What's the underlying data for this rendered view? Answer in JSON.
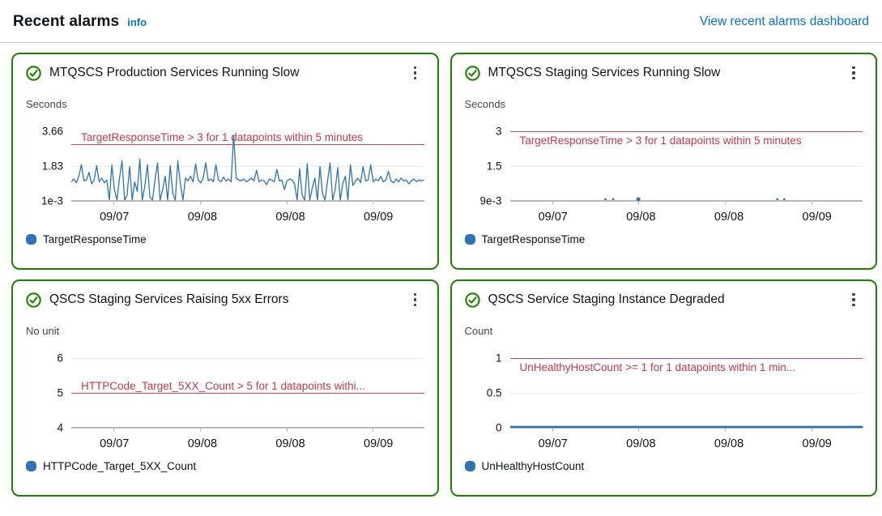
{
  "header": {
    "title": "Recent alarms",
    "info_label": "info",
    "dashboard_link": "View recent alarms dashboard"
  },
  "colors": {
    "ok_border_green": "#1f8104",
    "series_blue": "#2e73b3",
    "threshold_red": "#c8394a",
    "link_blue": "#0972d3",
    "axis_gray": "#b8bcc2"
  },
  "cards": [
    {
      "title": "MTQSCS Production Services Running Slow",
      "status": "OK",
      "chart": {
        "type": "line",
        "unit": "Seconds",
        "yticks": [
          "3.66",
          "1.83",
          "1e-3"
        ],
        "ymin": 0,
        "ymax": 3.66,
        "threshold": {
          "value": 3,
          "label": "TargetResponseTime > 3 for 1 datapoints within 5 minutes",
          "label_side": "above"
        },
        "xlabels": [
          "09/07",
          "09/08",
          "09/08",
          "09/09"
        ],
        "legend": "TargetResponseTime",
        "series": [
          1.0,
          1.15,
          0.95,
          1.3,
          1.9,
          1.05,
          1.1,
          1.5,
          0.9,
          1.1,
          1.85,
          1.0,
          1.2,
          0.95,
          1.1,
          0.001,
          1.9,
          0.6,
          0.001,
          1.2,
          2.1,
          0.001,
          0.3,
          1.8,
          0.001,
          1.0,
          0.5,
          2.2,
          0.001,
          0.8,
          1.9,
          0.2,
          0.001,
          1.1,
          2.0,
          0.001,
          0.6,
          1.3,
          0.001,
          1.85,
          0.4,
          0.001,
          2.1,
          0.9,
          0.001,
          1.2,
          1.05,
          1.3,
          1.0,
          1.95,
          1.1,
          0.95,
          1.2,
          2.0,
          1.05,
          1.15,
          1.0,
          1.9,
          1.1,
          1.0,
          1.25,
          1.05,
          1.15,
          1.0,
          3.45,
          1.2,
          1.1,
          1.05,
          1.15,
          1.0,
          1.1,
          1.2,
          1.05,
          1.6,
          1.0,
          1.1,
          1.05,
          0.85,
          1.15,
          1.1,
          1.0,
          1.65,
          1.05,
          1.1,
          0.6,
          1.05,
          1.15,
          1.1,
          0.9,
          0.001,
          1.7,
          0.3,
          0.001,
          1.95,
          0.001,
          0.7,
          1.2,
          0.001,
          1.8,
          0.4,
          0.001,
          1.05,
          2.0,
          0.001,
          0.6,
          1.75,
          0.001,
          0.9,
          1.3,
          0.001,
          1.9,
          0.8,
          1.05,
          1.2,
          0.95,
          1.8,
          1.05,
          1.1,
          1.9,
          1.0,
          1.15,
          1.05,
          1.3,
          1.0,
          1.1,
          1.55,
          1.05,
          0.95,
          1.15,
          1.0,
          1.2,
          1.05,
          1.1,
          0.9,
          1.05,
          1.15,
          1.0,
          1.1,
          1.05,
          1.1
        ],
        "dots": []
      }
    },
    {
      "title": "MTQSCS Staging Services Running Slow",
      "status": "OK",
      "chart": {
        "type": "line",
        "unit": "Seconds",
        "yticks": [
          "3",
          "1.5",
          "9e-3"
        ],
        "ymin": 0,
        "ymax": 3,
        "threshold": {
          "value": 3,
          "label": "TargetResponseTime > 3 for 1 datapoints within 5 minutes",
          "label_side": "below"
        },
        "xlabels": [
          "09/07",
          "09/08",
          "09/08",
          "09/09"
        ],
        "legend": "TargetResponseTime",
        "series": [],
        "dots": [
          {
            "x": 0.27,
            "r": 1.4
          },
          {
            "x": 0.292,
            "r": 1.4
          },
          {
            "x": 0.363,
            "r": 2.5
          },
          {
            "x": 0.757,
            "r": 1.4
          },
          {
            "x": 0.777,
            "r": 1.4
          }
        ]
      }
    },
    {
      "title": "QSCS Staging Services Raising 5xx Errors",
      "status": "OK",
      "chart": {
        "type": "line",
        "unit": "No unit",
        "yticks": [
          "6",
          "5",
          "4"
        ],
        "ymin": 4,
        "ymax": 6,
        "threshold": {
          "value": 5,
          "label": "HTTPCode_Target_5XX_Count > 5 for 1 datapoints withi...",
          "label_side": "above"
        },
        "xlabels": [
          "09/07",
          "09/08",
          "09/08",
          "09/09"
        ],
        "legend": "HTTPCode_Target_5XX_Count",
        "series": [],
        "dots": []
      }
    },
    {
      "title": "QSCS Service Staging Instance Degraded",
      "status": "OK",
      "chart": {
        "type": "line",
        "unit": "Count",
        "yticks": [
          "1",
          "0.5",
          "0"
        ],
        "ymin": 0,
        "ymax": 1,
        "threshold": {
          "value": 1,
          "label": "UnHealthyHostCount >= 1 for 1 datapoints within 1 min...",
          "label_side": "below"
        },
        "xlabels": [
          "09/07",
          "09/08",
          "09/08",
          "09/09"
        ],
        "legend": "UnHealthyHostCount",
        "flat_value": 0,
        "series": [],
        "dots": []
      }
    }
  ]
}
